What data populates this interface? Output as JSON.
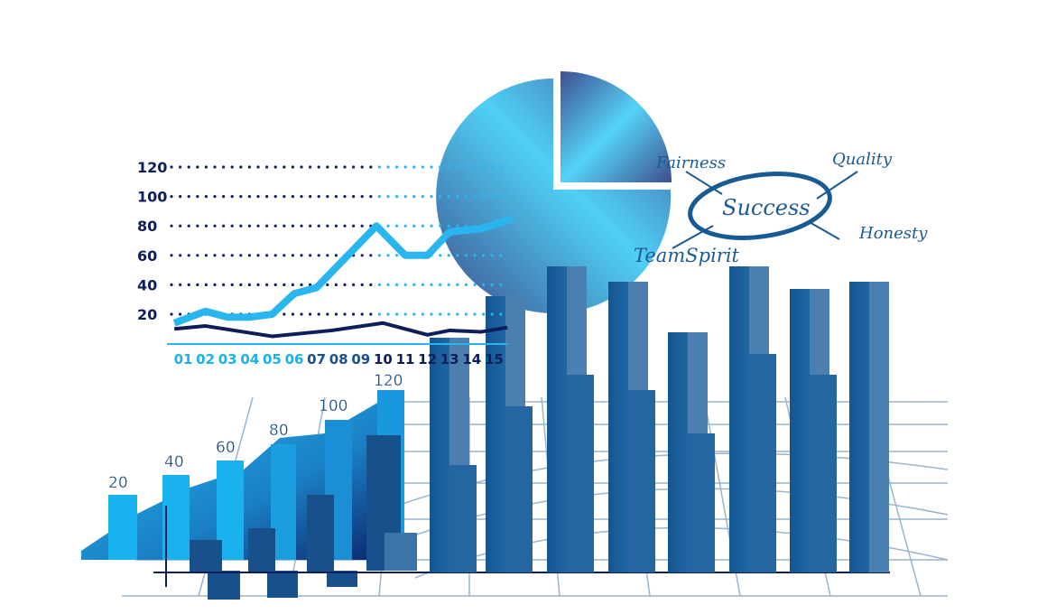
{
  "chart_data": [
    {
      "type": "line",
      "x_tick_labels": [
        "01",
        "02",
        "03",
        "04",
        "05",
        "06",
        "07",
        "08",
        "09",
        "10",
        "11",
        "12",
        "13",
        "14",
        "15"
      ],
      "y_tick_labels": [
        "20",
        "40",
        "60",
        "80",
        "100",
        "120"
      ],
      "ylim": [
        0,
        120
      ],
      "grid": "dotted horizontal",
      "series": [
        {
          "x": [
            0.6,
            2,
            3,
            4,
            5,
            6,
            7,
            9.7,
            11,
            12,
            13,
            14.4,
            15.8
          ],
          "values": [
            14,
            22,
            18,
            18,
            20,
            34,
            38,
            80,
            60,
            60,
            76,
            78,
            85
          ],
          "color": "#29b6f0"
        },
        {
          "x": [
            0.6,
            2,
            5,
            7.7,
            10,
            11,
            12,
            13,
            14.4,
            15.6
          ],
          "values": [
            10,
            12,
            5,
            9,
            14,
            10,
            6,
            9,
            8,
            11
          ],
          "color": "#0d1e5a"
        }
      ]
    },
    {
      "type": "bar",
      "data_labels": [
        "20",
        "40",
        "60",
        "80",
        "100",
        "120"
      ],
      "values": [
        20,
        40,
        60,
        80,
        100,
        120
      ],
      "color": "#1ab2ee"
    },
    {
      "type": "pie",
      "values": [
        75,
        25
      ],
      "exploded_slice": 1
    }
  ],
  "mindmap": {
    "center": "Success",
    "words": [
      "Fairness",
      "Quality",
      "Honesty",
      "TeamSpirit"
    ]
  },
  "colors": {
    "light_blue": "#1ab2ee",
    "navy": "#0d1e5a",
    "steel_blue": "#1f5a92",
    "grid": "#9ab4cc"
  }
}
